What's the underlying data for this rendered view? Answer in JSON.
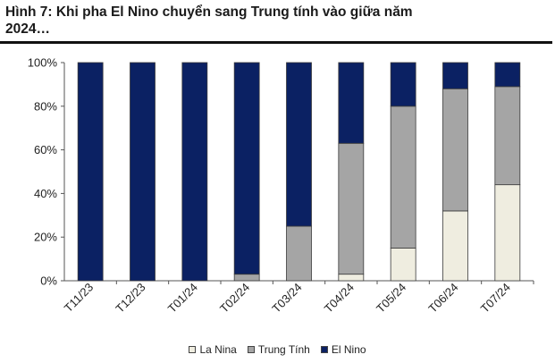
{
  "figure": {
    "title": "Hình 7: Khi pha El Nino chuyển sang Trung tính vào giữa năm\n2024…"
  },
  "chart_data": {
    "type": "bar",
    "stacked": true,
    "categories": [
      "T11/23",
      "T12/23",
      "T01/24",
      "T02/24",
      "T03/24",
      "T04/24",
      "T05/24",
      "T06/24",
      "T07/24"
    ],
    "series": [
      {
        "name": "La Nina",
        "color": "#efede0",
        "values": [
          0,
          0,
          0,
          0,
          0,
          3,
          15,
          32,
          44
        ]
      },
      {
        "name": "Trung Tính",
        "color": "#a5a5a5",
        "values": [
          0,
          0,
          0,
          3,
          25,
          60,
          65,
          56,
          45
        ]
      },
      {
        "name": "El Nino",
        "color": "#0b2163",
        "values": [
          100,
          100,
          100,
          97,
          75,
          37,
          20,
          12,
          11
        ]
      }
    ],
    "y_ticks": [
      "0%",
      "20%",
      "40%",
      "60%",
      "80%",
      "100%"
    ],
    "ylim": [
      0,
      100
    ],
    "grid": false,
    "legend_position": "bottom"
  }
}
